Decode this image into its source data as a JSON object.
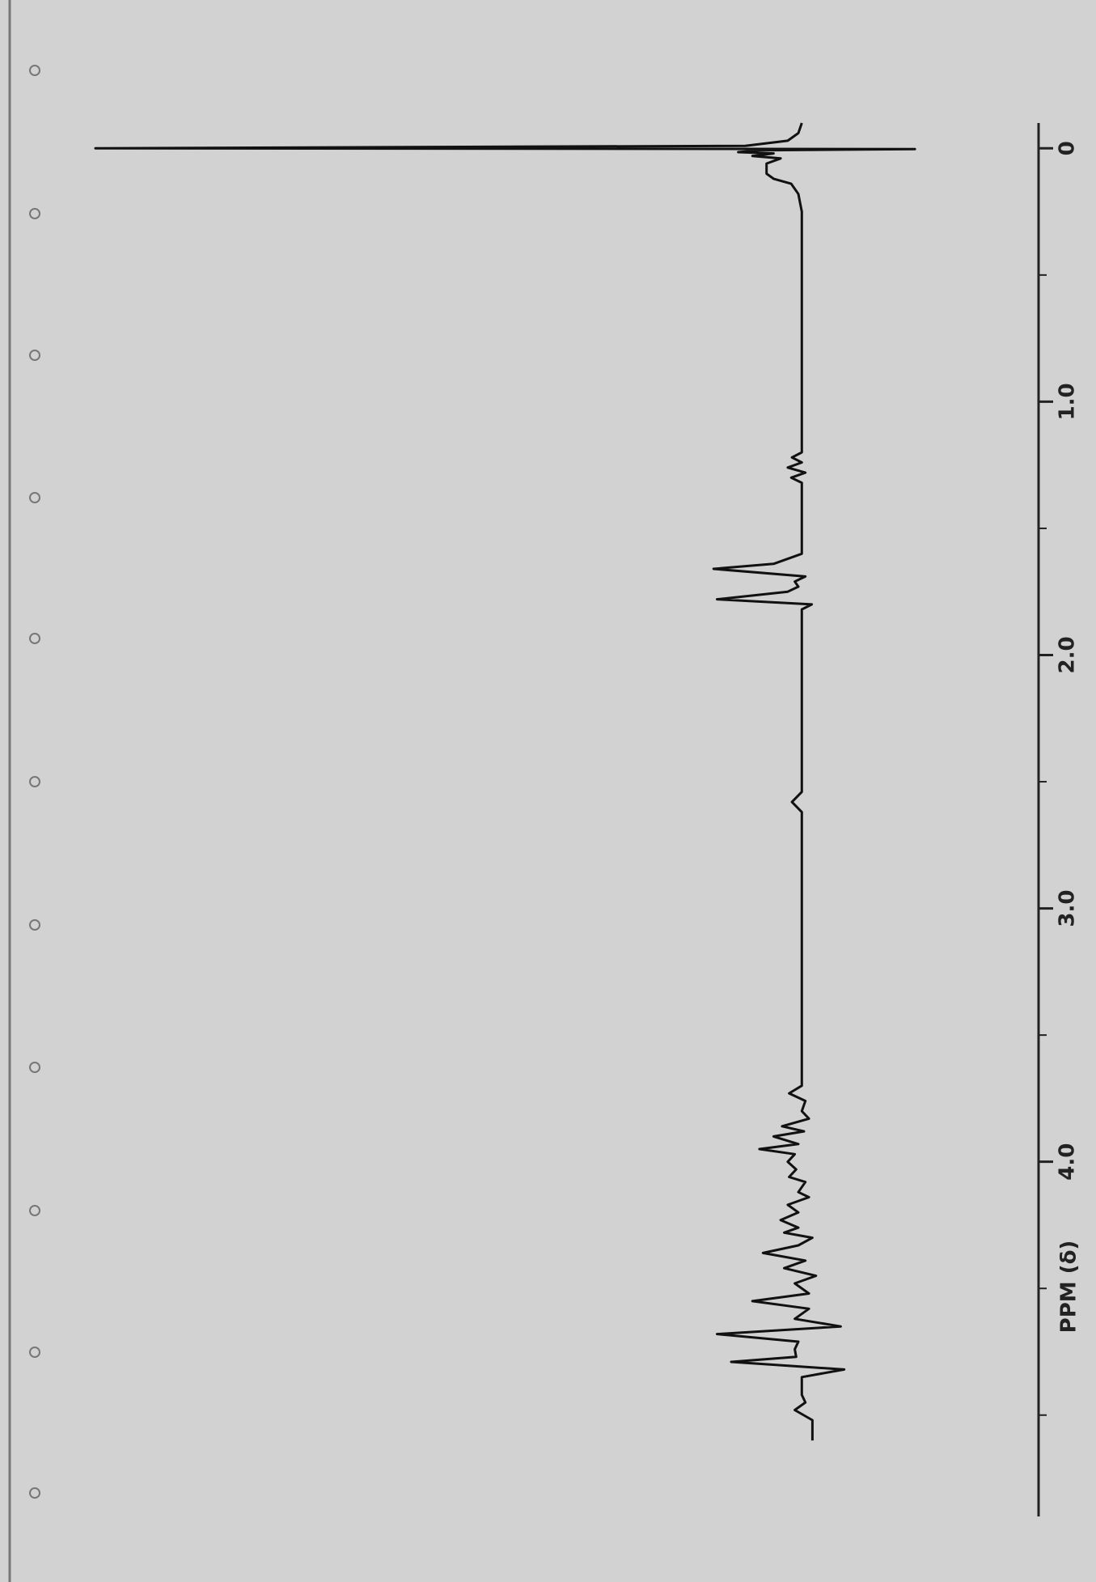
{
  "chart_data": {
    "type": "line",
    "xlabel": "PPM (δ)",
    "x": [
      -0.1,
      -0.06,
      -0.03,
      -0.01,
      0,
      0.003,
      0.008,
      0.015,
      0.02,
      0.03,
      0.04,
      0.06,
      0.08,
      0.1,
      0.12,
      0.14,
      0.18,
      0.25,
      1.2,
      1.22,
      1.24,
      1.26,
      1.28,
      1.3,
      1.32,
      1.6,
      1.64,
      1.66,
      1.69,
      1.71,
      1.73,
      1.75,
      1.78,
      1.8,
      1.82,
      2.54,
      2.58,
      2.62,
      3.7,
      3.73,
      3.76,
      3.8,
      3.83,
      3.86,
      3.88,
      3.9,
      3.93,
      3.95,
      3.97,
      4.0,
      4.03,
      4.06,
      4.08,
      4.12,
      4.14,
      4.17,
      4.2,
      4.23,
      4.26,
      4.28,
      4.3,
      4.33,
      4.36,
      4.39,
      4.42,
      4.45,
      4.48,
      4.52,
      4.55,
      4.58,
      4.62,
      4.65,
      4.68,
      4.71,
      4.74,
      4.77,
      4.79,
      4.82,
      4.85,
      4.92,
      4.95,
      4.98,
      5.02,
      5.1
    ],
    "values": [
      0,
      0.5,
      2,
      8,
      100,
      -16,
      6,
      9,
      4,
      7,
      3,
      5,
      5,
      5,
      4,
      1.5,
      0.5,
      0,
      0,
      1.4,
      0,
      2,
      -0.5,
      1.5,
      0,
      0,
      4,
      12.5,
      -0.5,
      1,
      0.5,
      2,
      12,
      -1.4,
      0,
      0,
      1.4,
      0,
      0,
      1.8,
      -0.5,
      0,
      -1,
      2.8,
      -0.3,
      4,
      0.5,
      6,
      1,
      2,
      0.8,
      1.8,
      -0.5,
      0.5,
      -1,
      2,
      0.5,
      3,
      0.5,
      2.5,
      -1.5,
      0.5,
      5.5,
      -0.5,
      2.5,
      -2,
      1,
      -1,
      7,
      -1,
      1,
      -5.5,
      12,
      0.5,
      1,
      0.8,
      10,
      -6,
      0,
      0,
      -0.5,
      1,
      -1.5,
      -1.5
    ],
    "color": "#111111",
    "xlim": [
      -0.1,
      5.4
    ],
    "xticks": [
      0,
      {
        "value": 1,
        "label": "1.0"
      },
      {
        "value": 2,
        "label": "2.0"
      },
      {
        "value": 3,
        "label": "3.0"
      },
      {
        "value": 4,
        "label": "4.0"
      }
    ],
    "xminorticks": [
      0.5,
      1.5,
      2.5,
      3.5,
      4.5,
      5
    ],
    "ylim": [
      -20,
      100
    ]
  }
}
